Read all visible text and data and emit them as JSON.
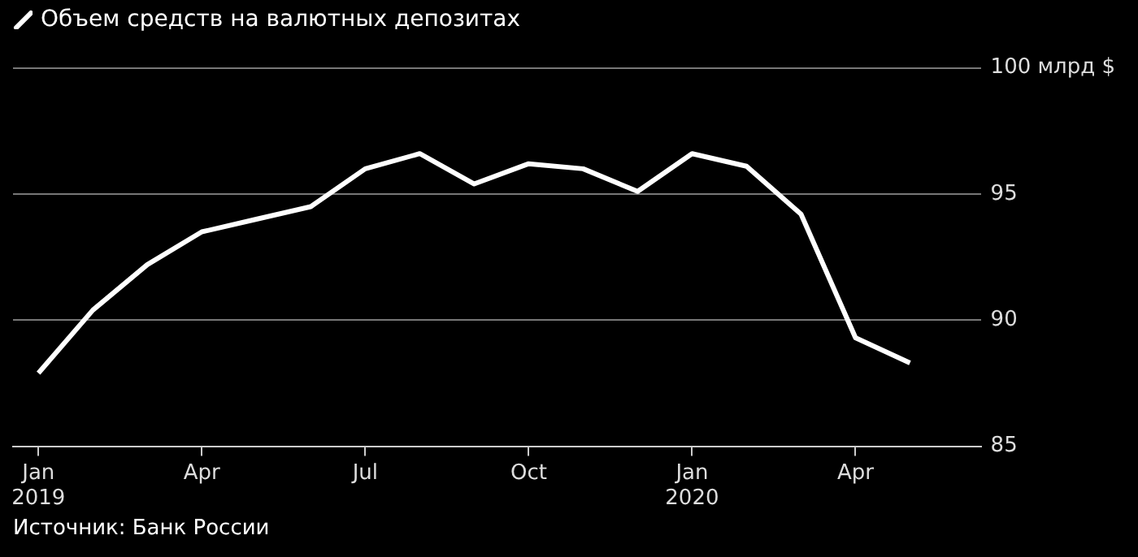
{
  "chart_data": {
    "type": "line",
    "title": "Объем средств на валютных депозитах",
    "x": [
      "2019-01",
      "2019-02",
      "2019-03",
      "2019-04",
      "2019-05",
      "2019-06",
      "2019-07",
      "2019-08",
      "2019-09",
      "2019-10",
      "2019-11",
      "2019-12",
      "2020-01",
      "2020-02",
      "2020-03",
      "2020-04",
      "2020-05"
    ],
    "series": [
      {
        "color": "#ffffff",
        "values": [
          87.9,
          90.4,
          92.2,
          93.5,
          94.0,
          94.5,
          96.0,
          96.6,
          95.4,
          96.2,
          96.0,
          95.1,
          96.6,
          96.1,
          94.2,
          89.3,
          88.3
        ]
      }
    ],
    "xlim": [
      "2018-12-17",
      "2020-06-10"
    ],
    "xticks": [
      {
        "value": "2019-01",
        "label": "Jan\n2019"
      },
      {
        "value": "2019-04",
        "label": "Apr"
      },
      {
        "value": "2019-07",
        "label": "Jul"
      },
      {
        "value": "2019-10",
        "label": "Oct"
      },
      {
        "value": "2020-01",
        "label": "Jan\n2020"
      },
      {
        "value": "2020-04",
        "label": "Apr"
      }
    ],
    "ylim": [
      85,
      100
    ],
    "yticks": [
      85,
      90,
      95,
      {
        "value": 100,
        "label": "100 млрд $"
      }
    ],
    "grid": "y",
    "legend": false,
    "marker": "none",
    "line_style": "solid",
    "annotations": [
      "Источник: Банк России"
    ]
  }
}
